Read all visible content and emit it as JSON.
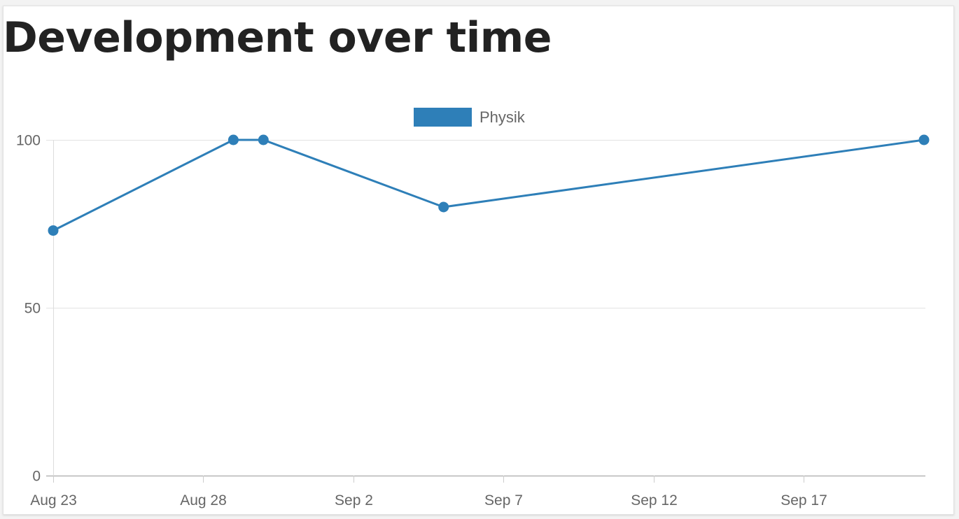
{
  "page": {
    "title": "Development over time"
  },
  "colors": {
    "series": "#2e7fb8",
    "grid": "#e3e3e3",
    "axis": "#999999",
    "text": "#666666"
  },
  "chart_data": {
    "type": "line",
    "title": "",
    "xlabel": "",
    "ylabel": "",
    "ylim": [
      0,
      100
    ],
    "xlim": [
      "2023-08-23",
      "2023-09-21"
    ],
    "y_ticks": [
      0,
      50,
      100
    ],
    "x_ticks": [
      {
        "date": "2023-08-23",
        "label": "Aug 23"
      },
      {
        "date": "2023-08-28",
        "label": "Aug 28"
      },
      {
        "date": "2023-09-02",
        "label": "Sep 2"
      },
      {
        "date": "2023-09-07",
        "label": "Sep 7"
      },
      {
        "date": "2023-09-12",
        "label": "Sep 12"
      },
      {
        "date": "2023-09-17",
        "label": "Sep 17"
      }
    ],
    "grid": "horizontal",
    "legend": "top-center",
    "series": [
      {
        "name": "Physik",
        "color": "#2e7fb8",
        "points": [
          {
            "x": "2023-08-23",
            "y": 73
          },
          {
            "x": "2023-08-29",
            "y": 100
          },
          {
            "x": "2023-08-30",
            "y": 100
          },
          {
            "x": "2023-09-05",
            "y": 80
          },
          {
            "x": "2023-09-21",
            "y": 100
          }
        ]
      }
    ]
  }
}
